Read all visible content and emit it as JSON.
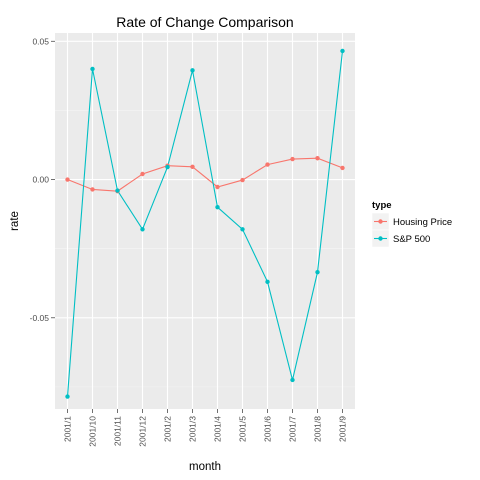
{
  "chart_data": {
    "type": "line",
    "title": "Rate of Change Comparison",
    "xlabel": "month",
    "ylabel": "rate",
    "categories": [
      "2001/1",
      "2001/10",
      "2001/11",
      "2001/12",
      "2001/2",
      "2001/3",
      "2001/4",
      "2001/5",
      "2001/6",
      "2001/7",
      "2001/8",
      "2001/9"
    ],
    "ylim": [
      -0.083,
      0.053
    ],
    "yticks": [
      -0.05,
      0.0,
      0.05
    ],
    "ytick_labels": [
      "-0.05",
      "0.00",
      "0.05"
    ],
    "grid": true,
    "legend": {
      "title": "type",
      "position": "right"
    },
    "series": [
      {
        "name": "Housing Price",
        "color": "#F8766D",
        "values": [
          0.0,
          -0.0036,
          -0.0042,
          0.002,
          0.005,
          0.0046,
          -0.0027,
          -0.0002,
          0.0054,
          0.0074,
          0.0077,
          0.0042
        ]
      },
      {
        "name": "S&P 500",
        "color": "#00BFC4",
        "values": [
          -0.0785,
          0.04,
          -0.004,
          -0.018,
          0.0045,
          0.0395,
          -0.01,
          -0.018,
          -0.037,
          -0.0725,
          -0.0335,
          0.0465
        ]
      }
    ]
  },
  "colors": {
    "panel_background": "#EBEBEB",
    "grid_major": "#FFFFFF",
    "grid_minor": "#F5F5F5"
  }
}
